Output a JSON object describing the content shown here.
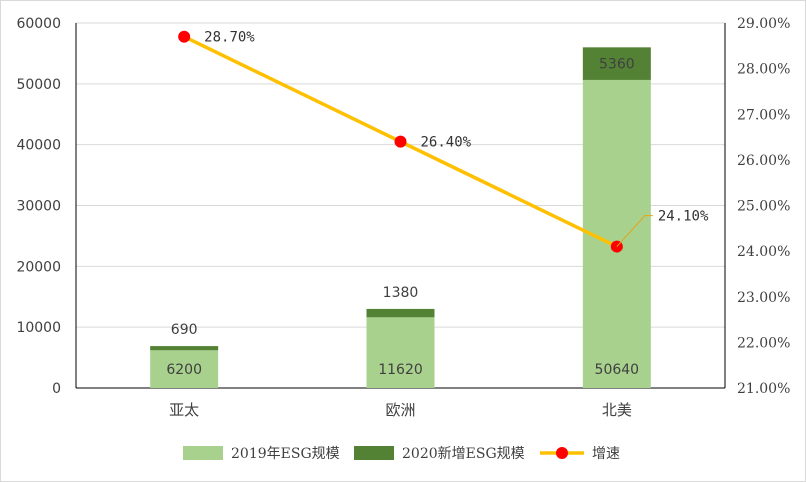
{
  "chart_data": {
    "type": "bar",
    "categories": [
      "亚太",
      "欧洲",
      "北美"
    ],
    "series": [
      {
        "name": "2019年ESG规模",
        "kind": "bar",
        "stack": "esg",
        "color": "#a9d18e",
        "values": [
          6200,
          11620,
          50640
        ]
      },
      {
        "name": "2020新增ESG规模",
        "kind": "bar",
        "stack": "esg",
        "color": "#548235",
        "values": [
          690,
          1380,
          5360
        ]
      },
      {
        "name": "增速",
        "kind": "line",
        "axis": "right",
        "line_color": "#ffc000",
        "marker_color": "#ff0000",
        "values": [
          28.7,
          26.4,
          24.1
        ]
      }
    ],
    "y_left": {
      "ylim": [
        0,
        60000
      ],
      "ticks": [
        "0",
        "10000",
        "20000",
        "30000",
        "40000",
        "50000",
        "60000"
      ]
    },
    "y_right": {
      "ylim": [
        21.0,
        29.0
      ],
      "ticks": [
        "21.00%",
        "22.00%",
        "23.00%",
        "24.00%",
        "25.00%",
        "26.00%",
        "27.00%",
        "28.00%",
        "29.00%"
      ]
    },
    "bar_labels_base": [
      "6200",
      "11620",
      "50640"
    ],
    "bar_labels_increment": [
      "690",
      "1380",
      "5360"
    ],
    "line_labels": [
      "28.70%",
      "26.40%",
      "24.10%"
    ],
    "grid": true,
    "legend_position": "bottom",
    "legend": [
      "2019年ESG规模",
      "2020新增ESG规模",
      "增速"
    ]
  }
}
